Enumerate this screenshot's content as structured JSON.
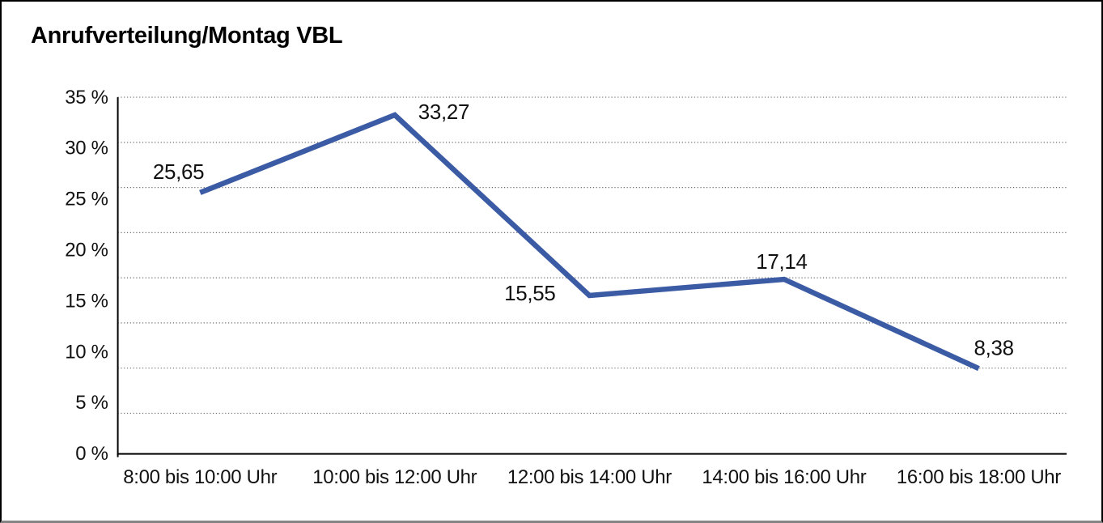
{
  "chart_data": {
    "type": "line",
    "title": "Anrufverteilung/Montag VBL",
    "categories": [
      "8:00 bis 10:00 Uhr",
      "10:00 bis 12:00 Uhr",
      "12:00 bis 14:00 Uhr",
      "14:00 bis 16:00 Uhr",
      "16:00 bis 18:00 Uhr"
    ],
    "values": [
      25.65,
      33.27,
      15.55,
      17.14,
      8.38
    ],
    "value_labels": [
      "25,65",
      "33,27",
      "15,55",
      "17,14",
      "8,38"
    ],
    "label_placements": [
      "above-left",
      "right",
      "left",
      "above",
      "above-right"
    ],
    "y_axis": {
      "min": 0,
      "max": 35,
      "step": 5,
      "tick_labels": [
        "0 %",
        "5 %",
        "10 %",
        "15 %",
        "20 %",
        "25 %",
        "30 %",
        "35 %"
      ]
    },
    "xlabel": "",
    "ylabel": "",
    "grid": "dotted-horizontal",
    "legend": "none",
    "colors": {
      "line": "#3B5BA4",
      "text": "#111111",
      "grid": "#6b6b6b",
      "axis": "#000000",
      "background": "#ffffff",
      "frame_border": "#000000"
    }
  }
}
